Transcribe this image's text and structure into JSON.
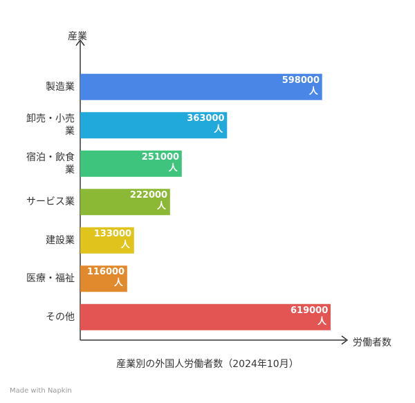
{
  "chart_data": {
    "type": "barh",
    "title": "産業別の外国人労働者数（2024年10月）",
    "y_label": "産業",
    "x_label": "労働者数",
    "categories": [
      "製造業",
      "卸売・小売業",
      "宿泊・飲食業",
      "サービス業",
      "建設業",
      "医療・福祉",
      "その他"
    ],
    "values": [
      598000,
      363000,
      251000,
      222000,
      133000,
      116000,
      619000
    ],
    "value_labels": [
      "598000人",
      "363000人",
      "251000人",
      "222000人",
      "133000人",
      "116000人",
      "619000人"
    ],
    "colors": [
      "#4a86e6",
      "#22a9dc",
      "#3ec47d",
      "#8cb935",
      "#e0c31c",
      "#e0892d",
      "#e25553"
    ]
  },
  "footer": "Made with Napkin"
}
